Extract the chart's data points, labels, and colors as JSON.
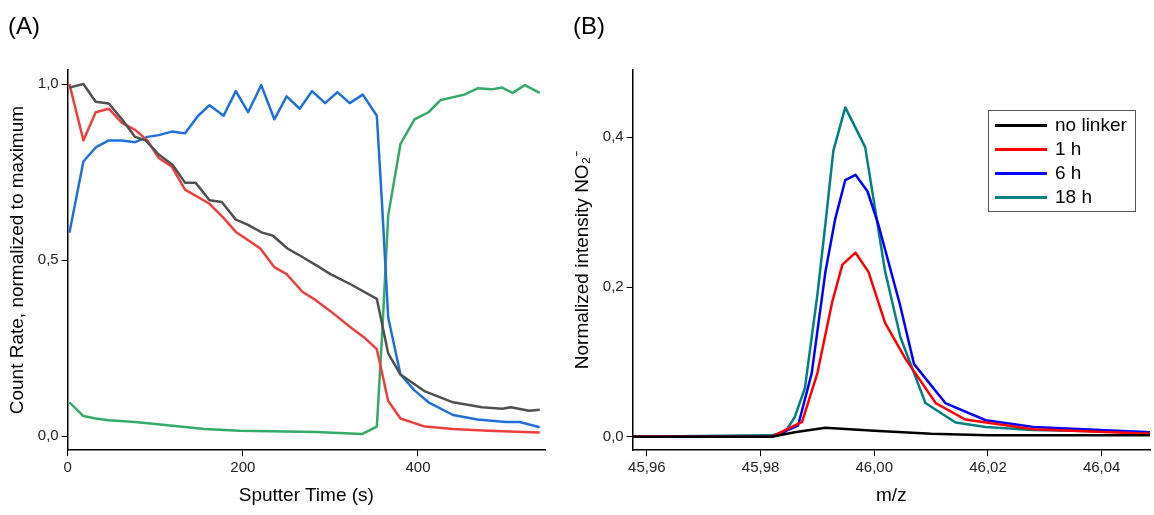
{
  "chart_data": [
    {
      "type": "line",
      "annotations": [
        "(A)"
      ],
      "xlabel": "Sputter Time (s)",
      "ylabel": "Count Rate, normalized to maximum",
      "xlim": [
        0,
        545
      ],
      "xticks": [
        0,
        200,
        400
      ],
      "ylim": [
        -0.04,
        1.04
      ],
      "yticks": [
        {
          "value": 0,
          "label": "0,0"
        },
        {
          "value": 0.5,
          "label": "0,5"
        },
        {
          "value": 1,
          "label": "1,0"
        }
      ],
      "grid": false,
      "legend": false,
      "marker": "none",
      "line_style": "solid",
      "series": [
        {
          "color": "#505050",
          "x": [
            2,
            18,
            32,
            47,
            62,
            77,
            89,
            104,
            120,
            134,
            146,
            162,
            176,
            192,
            206,
            222,
            234,
            251,
            265,
            284,
            300,
            308,
            324,
            353,
            366,
            380,
            408,
            440,
            473,
            496,
            506,
            527,
            539
          ],
          "values": [
            0.99,
            1.0,
            0.95,
            0.945,
            0.9,
            0.85,
            0.84,
            0.8,
            0.77,
            0.72,
            0.72,
            0.67,
            0.665,
            0.615,
            0.6,
            0.578,
            0.57,
            0.533,
            0.513,
            0.485,
            0.46,
            0.45,
            0.43,
            0.39,
            0.235,
            0.175,
            0.127,
            0.096,
            0.082,
            0.078,
            0.082,
            0.072,
            0.075
          ]
        },
        {
          "color": "#ef3e3e",
          "x": [
            2,
            18,
            32,
            47,
            62,
            77,
            91,
            104,
            119,
            134,
            162,
            178,
            192,
            220,
            236,
            250,
            268,
            281,
            300,
            324,
            340,
            353,
            366,
            380,
            408,
            440,
            480,
            539
          ],
          "values": [
            1.0,
            0.84,
            0.92,
            0.93,
            0.89,
            0.87,
            0.84,
            0.79,
            0.765,
            0.7,
            0.66,
            0.62,
            0.58,
            0.533,
            0.48,
            0.46,
            0.41,
            0.39,
            0.355,
            0.307,
            0.277,
            0.247,
            0.1,
            0.05,
            0.027,
            0.02,
            0.015,
            0.01
          ]
        },
        {
          "color": "#1e6fdc",
          "x": [
            2,
            18,
            32,
            47,
            62,
            77,
            91,
            104,
            119,
            134,
            149,
            162,
            178,
            192,
            206,
            221,
            236,
            250,
            265,
            279,
            294,
            308,
            322,
            337,
            353,
            359,
            366,
            380,
            396,
            412,
            440,
            468,
            500,
            516,
            539
          ],
          "values": [
            0.578,
            0.78,
            0.82,
            0.84,
            0.84,
            0.835,
            0.85,
            0.855,
            0.865,
            0.86,
            0.91,
            0.94,
            0.91,
            0.98,
            0.92,
            0.997,
            0.9,
            0.965,
            0.93,
            0.98,
            0.946,
            0.977,
            0.946,
            0.97,
            0.91,
            0.657,
            0.337,
            0.175,
            0.13,
            0.096,
            0.06,
            0.047,
            0.04,
            0.04,
            0.025
          ]
        },
        {
          "color": "#33aa66",
          "x": [
            2,
            18,
            32,
            47,
            77,
            117,
            156,
            196,
            284,
            336,
            353,
            359,
            366,
            380,
            396,
            412,
            426,
            453,
            468,
            484,
            496,
            508,
            522,
            539
          ],
          "values": [
            0.096,
            0.057,
            0.05,
            0.045,
            0.04,
            0.03,
            0.02,
            0.015,
            0.012,
            0.006,
            0.027,
            0.286,
            0.627,
            0.83,
            0.9,
            0.92,
            0.955,
            0.97,
            0.988,
            0.985,
            0.99,
            0.975,
            0.997,
            0.975
          ]
        }
      ]
    },
    {
      "type": "line",
      "annotations": [
        "(B)"
      ],
      "xlabel": "m/z",
      "ylabel": "Normalized intensity NO₂⁻",
      "xlim": [
        45.9575,
        46.0485
      ],
      "xticks": [
        {
          "value": 45.96,
          "label": "45,96"
        },
        {
          "value": 45.98,
          "label": "45,98"
        },
        {
          "value": 46,
          "label": "46,00"
        },
        {
          "value": 46.02,
          "label": "46,02"
        },
        {
          "value": 46.04,
          "label": "46,04"
        }
      ],
      "ylim": [
        -0.018,
        0.49
      ],
      "yticks": [
        {
          "value": 0,
          "label": "0,0"
        },
        {
          "value": 0.2,
          "label": "0,2"
        },
        {
          "value": 0.4,
          "label": "0,4"
        }
      ],
      "grid": false,
      "legend": "top right",
      "marker": "none",
      "line_style": "solid",
      "series": [
        {
          "name": "no linker",
          "color": "#000000",
          "x": [
            45.9575,
            45.982,
            45.986,
            45.9914,
            46.0,
            46.01,
            46.02,
            46.0485
          ],
          "values": [
            0,
            0,
            0.006,
            0.012,
            0.008,
            0.004,
            0.002,
            0.002
          ]
        },
        {
          "name": "1 h",
          "color": "#ff0000",
          "x": [
            45.9575,
            45.982,
            45.9873,
            45.99,
            45.9926,
            45.9944,
            45.9967,
            45.999,
            46.0019,
            46.0055,
            46.0108,
            46.016,
            46.028,
            46.0485
          ],
          "values": [
            0,
            0,
            0.02,
            0.085,
            0.18,
            0.23,
            0.246,
            0.22,
            0.152,
            0.104,
            0.045,
            0.023,
            0.01,
            0.004
          ]
        },
        {
          "name": "6 h",
          "color": "#0000ff",
          "x": [
            45.9575,
            45.982,
            45.9866,
            45.989,
            45.9914,
            45.9931,
            45.9949,
            45.9967,
            45.9988,
            46.0007,
            46.0045,
            46.007,
            46.0125,
            46.0196,
            46.028,
            46.0485
          ],
          "values": [
            0,
            0,
            0.015,
            0.085,
            0.22,
            0.29,
            0.343,
            0.35,
            0.328,
            0.284,
            0.177,
            0.097,
            0.045,
            0.022,
            0.013,
            0.006
          ]
        },
        {
          "name": "18 h",
          "color": "#008080",
          "x": [
            45.9575,
            45.982,
            45.9843,
            45.986,
            45.9878,
            45.99,
            45.9914,
            45.9928,
            45.9949,
            45.9984,
            46.0019,
            46.0046,
            46.009,
            46.0143,
            46.0196,
            46.028,
            46.0485
          ],
          "values": [
            0,
            0.002,
            0.006,
            0.026,
            0.065,
            0.19,
            0.284,
            0.382,
            0.44,
            0.387,
            0.221,
            0.133,
            0.045,
            0.019,
            0.013,
            0.009,
            0.006
          ]
        }
      ]
    }
  ]
}
